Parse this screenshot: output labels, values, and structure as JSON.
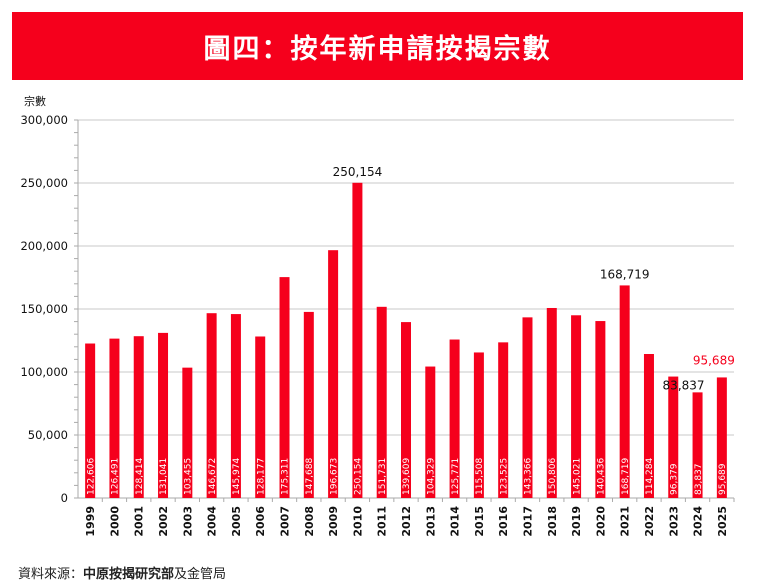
{
  "title": "圖四：按年新申請按揭宗數",
  "source": {
    "prefix": "資料來源：",
    "bold": "中原按揭研究部",
    "suffix": "及金管局"
  },
  "colors": {
    "bar": "#f5001c",
    "title_bg": "#f5001c",
    "highlight_label": "#f5001c"
  },
  "chart_data": {
    "type": "bar",
    "title": "圖四：按年新申請按揭宗數",
    "xlabel": "",
    "ylabel": "宗數",
    "ylim": [
      0,
      300000
    ],
    "yticks": [
      0,
      50000,
      100000,
      150000,
      200000,
      250000,
      300000
    ],
    "ytick_labels": [
      "0",
      "50,000",
      "100,000",
      "150,000",
      "200,000",
      "250,000",
      "300,000"
    ],
    "grid": true,
    "categories": [
      "1999",
      "2000",
      "2001",
      "2002",
      "2003",
      "2004",
      "2005",
      "2006",
      "2007",
      "2008",
      "2009",
      "2010",
      "2011",
      "2012",
      "2013",
      "2014",
      "2015",
      "2016",
      "2017",
      "2018",
      "2019",
      "2020",
      "2021",
      "2022",
      "2023",
      "2024",
      "2025"
    ],
    "values": [
      122606,
      126491,
      128414,
      131041,
      103455,
      146672,
      145974,
      128177,
      175311,
      147688,
      196673,
      250154,
      151731,
      139609,
      104329,
      125771,
      115508,
      123525,
      143366,
      150806,
      145021,
      140436,
      168719,
      114284,
      96379,
      83837,
      95689
    ],
    "value_labels": [
      "122,606",
      "126,491",
      "128,414",
      "131,041",
      "103,455",
      "146,672",
      "145,974",
      "128,177",
      "175,311",
      "147,688",
      "196,673",
      "250,154",
      "151,731",
      "139,609",
      "104,329",
      "125,771",
      "115,508",
      "123,525",
      "143,366",
      "150,806",
      "145,021",
      "140,436",
      "168,719",
      "114,284",
      "96,379",
      "83,837",
      "95,689"
    ],
    "annotations": [
      {
        "category": "2010",
        "text": "250,154",
        "color": "#111111"
      },
      {
        "category": "2021",
        "text": "168,719",
        "color": "#111111"
      },
      {
        "category": "2024",
        "text": "83,837",
        "color": "#111111"
      },
      {
        "category": "2025",
        "text": "95,689",
        "color": "#f5001c"
      }
    ]
  }
}
